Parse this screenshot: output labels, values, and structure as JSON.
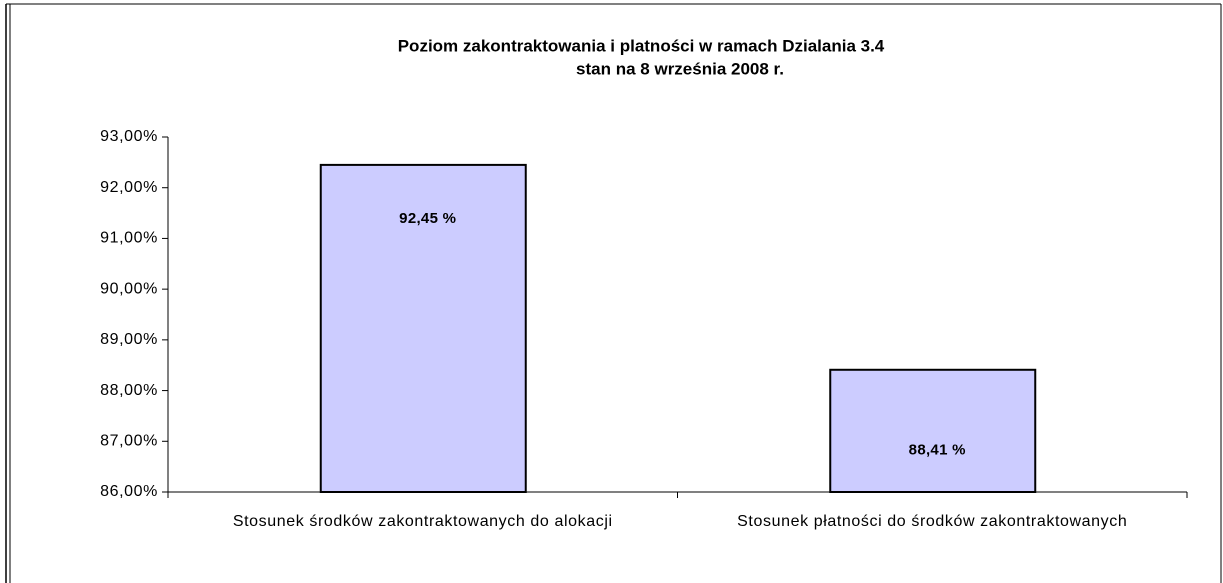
{
  "chart_data": {
    "type": "bar",
    "title": "Poziom zakontraktowania i platności w ramach Dzialania 3.4",
    "subtitle": "stan na 8 września 2008 r.",
    "categories": [
      "Stosunek środków zakontraktowanych do alokacji",
      "Stosunek płatności do środków zakontraktowanych"
    ],
    "values": [
      92.45,
      88.41
    ],
    "value_labels": [
      "92,45 %",
      "88,41 %"
    ],
    "color": "#ccccff",
    "ylim": [
      86,
      93
    ],
    "yticks": [
      {
        "value": 86,
        "label": "86,00%"
      },
      {
        "value": 87,
        "label": "87,00%"
      },
      {
        "value": 88,
        "label": "88,00%"
      },
      {
        "value": 89,
        "label": "89,00%"
      },
      {
        "value": 90,
        "label": "90,00%"
      },
      {
        "value": 91,
        "label": "91,00%"
      },
      {
        "value": 92,
        "label": "92,00%"
      },
      {
        "value": 93,
        "label": "93,00%"
      }
    ],
    "grid": false
  }
}
